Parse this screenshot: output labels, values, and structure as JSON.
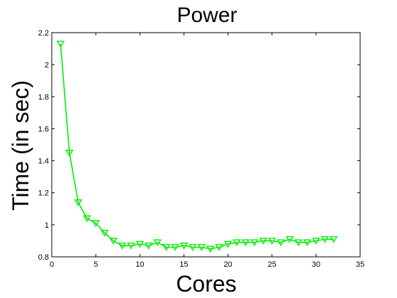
{
  "chart_data": {
    "type": "line",
    "title": "Power",
    "xlabel": "Cores",
    "ylabel": "Time (in sec)",
    "xlim": [
      0,
      35
    ],
    "ylim": [
      0.8,
      2.2
    ],
    "xticks": [
      0,
      5,
      10,
      15,
      20,
      25,
      30,
      35
    ],
    "yticks": [
      0.8,
      1.0,
      1.2,
      1.4,
      1.6,
      1.8,
      2.0,
      2.2
    ],
    "xtick_labels": [
      "0",
      "5",
      "10",
      "15",
      "20",
      "25",
      "30",
      "35"
    ],
    "ytick_labels": [
      "0.8",
      "1",
      "1.2",
      "1.4",
      "1.6",
      "1.8",
      "2",
      "2.2"
    ],
    "grid": false,
    "series": [
      {
        "color": "#00ee00",
        "marker": "triangle-down",
        "x": [
          1,
          2,
          3,
          4,
          5,
          6,
          7,
          8,
          9,
          10,
          11,
          12,
          13,
          14,
          15,
          16,
          17,
          18,
          19,
          20,
          21,
          22,
          23,
          24,
          25,
          26,
          27,
          28,
          29,
          30,
          31,
          32
        ],
        "y": [
          2.13,
          1.45,
          1.14,
          1.04,
          1.01,
          0.95,
          0.9,
          0.87,
          0.87,
          0.88,
          0.87,
          0.89,
          0.86,
          0.86,
          0.87,
          0.86,
          0.86,
          0.85,
          0.86,
          0.88,
          0.89,
          0.89,
          0.89,
          0.9,
          0.9,
          0.89,
          0.91,
          0.89,
          0.89,
          0.9,
          0.91,
          0.91
        ]
      }
    ]
  }
}
